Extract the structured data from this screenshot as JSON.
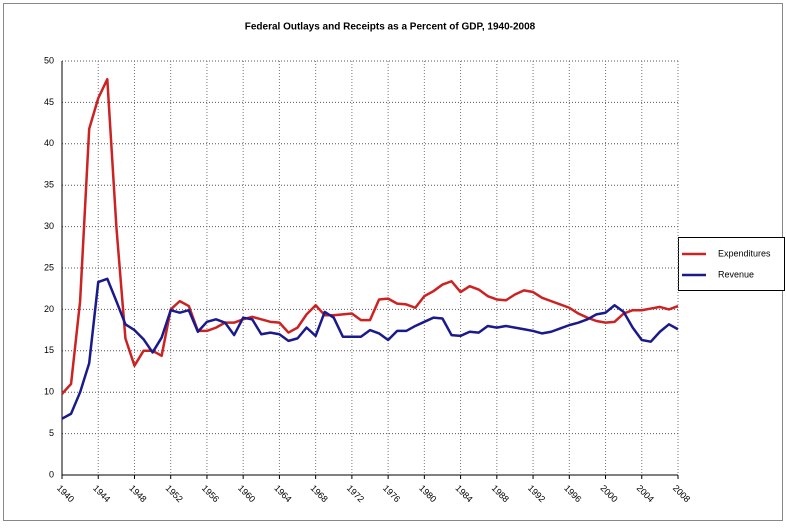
{
  "chart_data": {
    "type": "line",
    "title": "Federal Outlays and Receipts as a Percent of GDP, 1940-2008",
    "x": [
      1940,
      1941,
      1942,
      1943,
      1944,
      1945,
      1946,
      1947,
      1948,
      1949,
      1950,
      1951,
      1952,
      1953,
      1954,
      1955,
      1956,
      1957,
      1958,
      1959,
      1960,
      1961,
      1962,
      1963,
      1964,
      1965,
      1966,
      1967,
      1968,
      1969,
      1970,
      1971,
      1972,
      1973,
      1974,
      1975,
      1976,
      1977,
      1978,
      1979,
      1980,
      1981,
      1982,
      1983,
      1984,
      1985,
      1986,
      1987,
      1988,
      1989,
      1990,
      1991,
      1992,
      1993,
      1994,
      1995,
      1996,
      1997,
      1998,
      1999,
      2000,
      2001,
      2002,
      2003,
      2004,
      2005,
      2006,
      2007,
      2008
    ],
    "series": [
      {
        "name": "Expenditures",
        "color": "#cc2222",
        "values": [
          9.8,
          11,
          21,
          41.8,
          45.5,
          47.8,
          30,
          16.5,
          13.2,
          15,
          15,
          14.4,
          20,
          21,
          20.4,
          17.4,
          17.4,
          17.8,
          18.4,
          18.4,
          18.8,
          19.1,
          18.8,
          18.5,
          18.4,
          17.2,
          17.8,
          19.4,
          20.5,
          19.3,
          19.3,
          19.4,
          19.5,
          18.7,
          18.7,
          21.2,
          21.3,
          20.7,
          20.6,
          20.2,
          21.6,
          22.2,
          23,
          23.4,
          22.1,
          22.8,
          22.4,
          21.6,
          21.2,
          21.1,
          21.8,
          22.3,
          22.1,
          21.4,
          21,
          20.6,
          20.2,
          19.5,
          19,
          18.6,
          18.4,
          18.5,
          19.5,
          19.9,
          19.9,
          20.1,
          20.3,
          20,
          20.4
        ]
      },
      {
        "name": "Revenue",
        "color": "#1a1a8c",
        "values": [
          6.8,
          7.4,
          10,
          13.5,
          23.3,
          23.7,
          21,
          18.2,
          17.5,
          16.4,
          14.8,
          16.6,
          19.9,
          19.6,
          19.9,
          17.3,
          18.5,
          18.8,
          18.4,
          16.9,
          19,
          18.8,
          17,
          17.2,
          17,
          16.2,
          16.5,
          17.8,
          16.8,
          19.7,
          19,
          16.7,
          16.7,
          16.7,
          17.5,
          17.1,
          16.3,
          17.4,
          17.4,
          18,
          18.5,
          19,
          18.9,
          16.9,
          16.8,
          17.3,
          17.2,
          18,
          17.8,
          18,
          17.8,
          17.6,
          17.4,
          17.1,
          17.3,
          17.7,
          18.1,
          18.4,
          18.8,
          19.4,
          19.6,
          20.5,
          19.7,
          17.8,
          16.3,
          16.1,
          17.3,
          18.2,
          17.6
        ]
      }
    ],
    "xlim": [
      1940,
      2008
    ],
    "xticks": [
      1940,
      1944,
      1948,
      1952,
      1956,
      1960,
      1964,
      1968,
      1972,
      1976,
      1980,
      1984,
      1988,
      1992,
      1996,
      2000,
      2004,
      2008
    ],
    "ylim": [
      0,
      50
    ],
    "yticks": [
      0,
      5,
      10,
      15,
      20,
      25,
      30,
      35,
      40,
      45,
      50
    ],
    "grid": true,
    "legend": "right"
  }
}
